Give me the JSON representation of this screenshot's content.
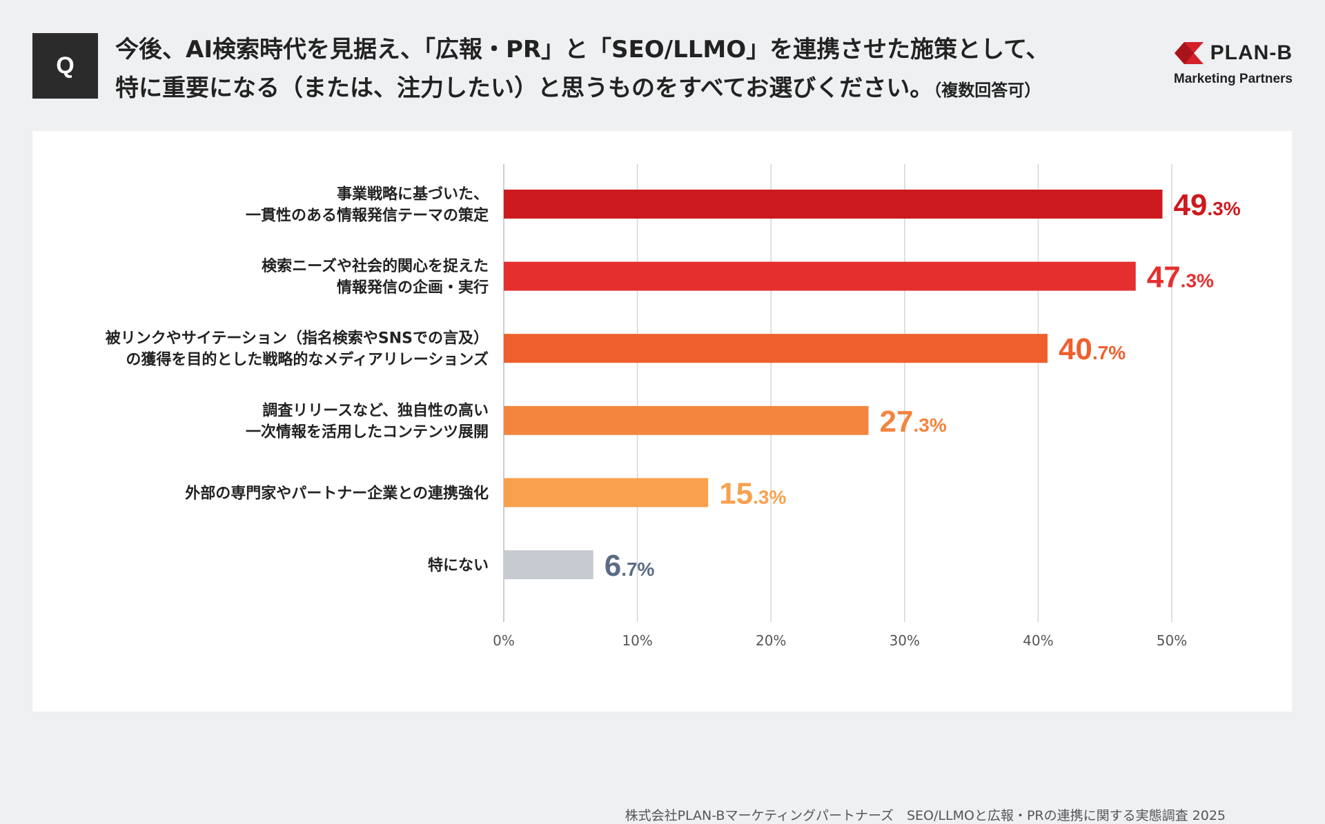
{
  "badge": "Q",
  "question": {
    "line1": "今後、AI検索時代を見据え、「広報・PR」と「SEO/LLMO」を連携させた施策として、",
    "line2": "特に重要になる（または、注力したい）と思うものをすべてお選びください。",
    "note": "（複数回答可）"
  },
  "logo": {
    "name": "PLAN-B",
    "sub": "Marketing Partners",
    "color": "#d3222a"
  },
  "source": "株式会社PLAN-Bマーケティングパートナーズ　SEO/LLMOと広報・PRの連携に関する実態調査 2025",
  "chart_data": {
    "type": "bar",
    "orientation": "horizontal",
    "categories": [
      [
        "事業戦略に基づいた、",
        "一貫性のある情報発信テーマの策定"
      ],
      [
        "検索ニーズや社会的関心を捉えた",
        "情報発信の企画・実行"
      ],
      [
        "被リンクやサイテーション（指名検索やSNSでの言及）",
        "の獲得を目的とした戦略的なメディアリレーションズ"
      ],
      [
        "調査リリースなど、独自性の高い",
        "一次情報を活用したコンテンツ展開"
      ],
      [
        "外部の専門家やパートナー企業との連携強化"
      ],
      [
        "特にない"
      ]
    ],
    "values": [
      49.3,
      47.3,
      40.7,
      27.3,
      15.3,
      6.7
    ],
    "labels": [
      {
        "int": "49",
        "dec": ".3%"
      },
      {
        "int": "47",
        "dec": ".3%"
      },
      {
        "int": "40",
        "dec": ".7%"
      },
      {
        "int": "27",
        "dec": ".3%"
      },
      {
        "int": "15",
        "dec": ".3%"
      },
      {
        "int": "6",
        "dec": ".7%"
      }
    ],
    "colors": [
      "#cc1a1e",
      "#e52f2f",
      "#ef5f2d",
      "#f3853f",
      "#f9a04e",
      "#c7cbd1"
    ],
    "label_colors": [
      "#cc1a1e",
      "#e52f2f",
      "#ef5f2d",
      "#f3853f",
      "#f9a04e",
      "#5b6b85"
    ],
    "xlim": [
      0,
      50
    ],
    "ticks": [
      "0%",
      "10%",
      "20%",
      "30%",
      "40%",
      "50%"
    ],
    "grid": true
  }
}
